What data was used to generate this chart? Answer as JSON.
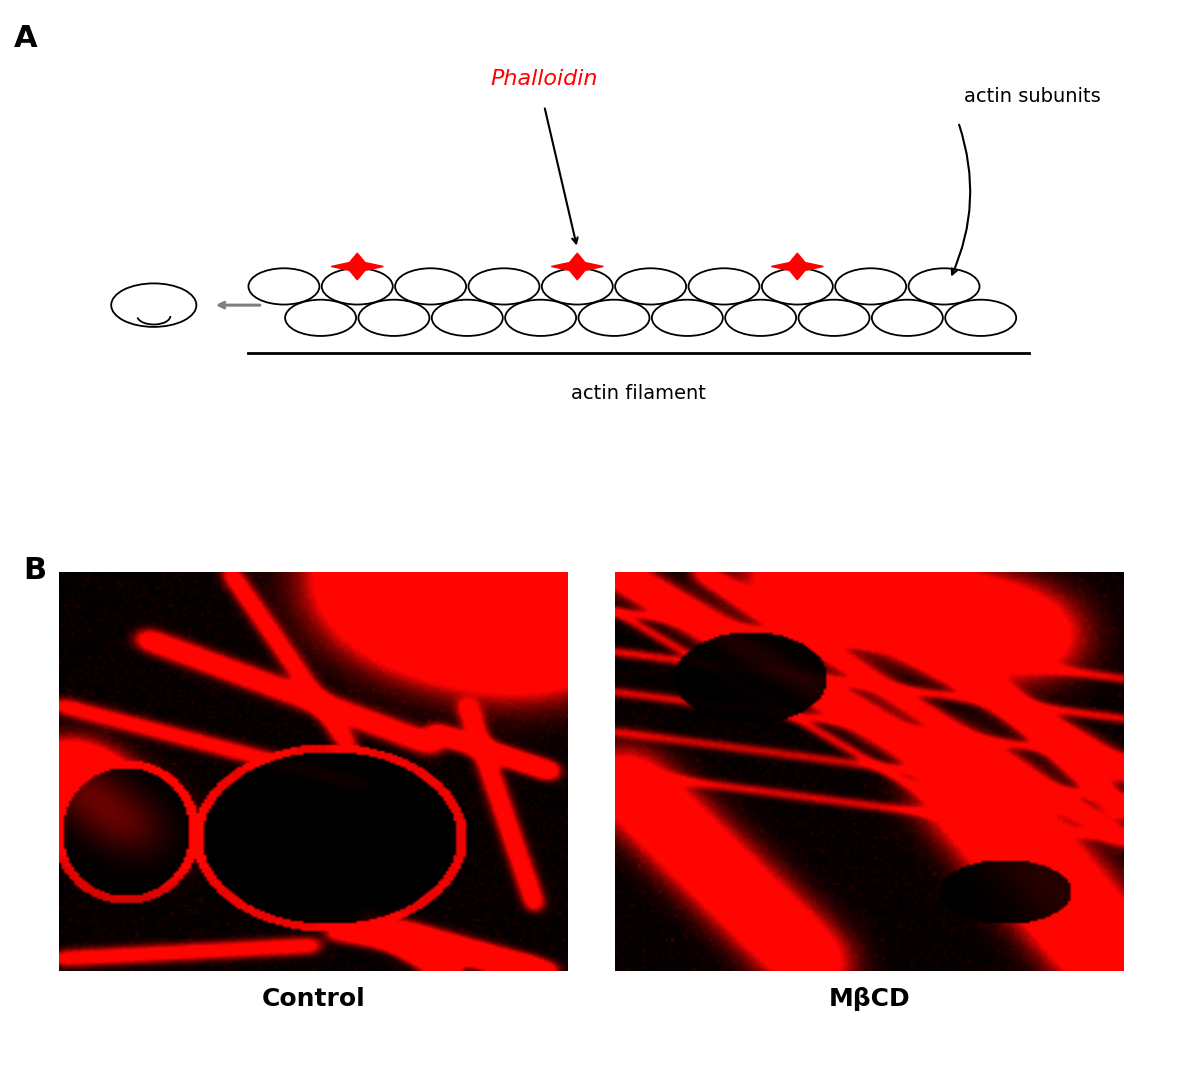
{
  "panel_A_label": "A",
  "panel_B_label": "B",
  "phalloidin_label": "Phalloidin",
  "actin_subunits_label": "actin subunits",
  "actin_filament_label": "actin filament",
  "control_label": "Control",
  "mbcd_label": "MβCD",
  "phalloidin_color": "#ff0000",
  "label_color": "#000000",
  "bg_color": "#ffffff",
  "panel_label_fontsize": 22,
  "annotation_fontsize": 14,
  "caption_fontsize": 18,
  "fig_width": 11.83,
  "fig_height": 10.79
}
